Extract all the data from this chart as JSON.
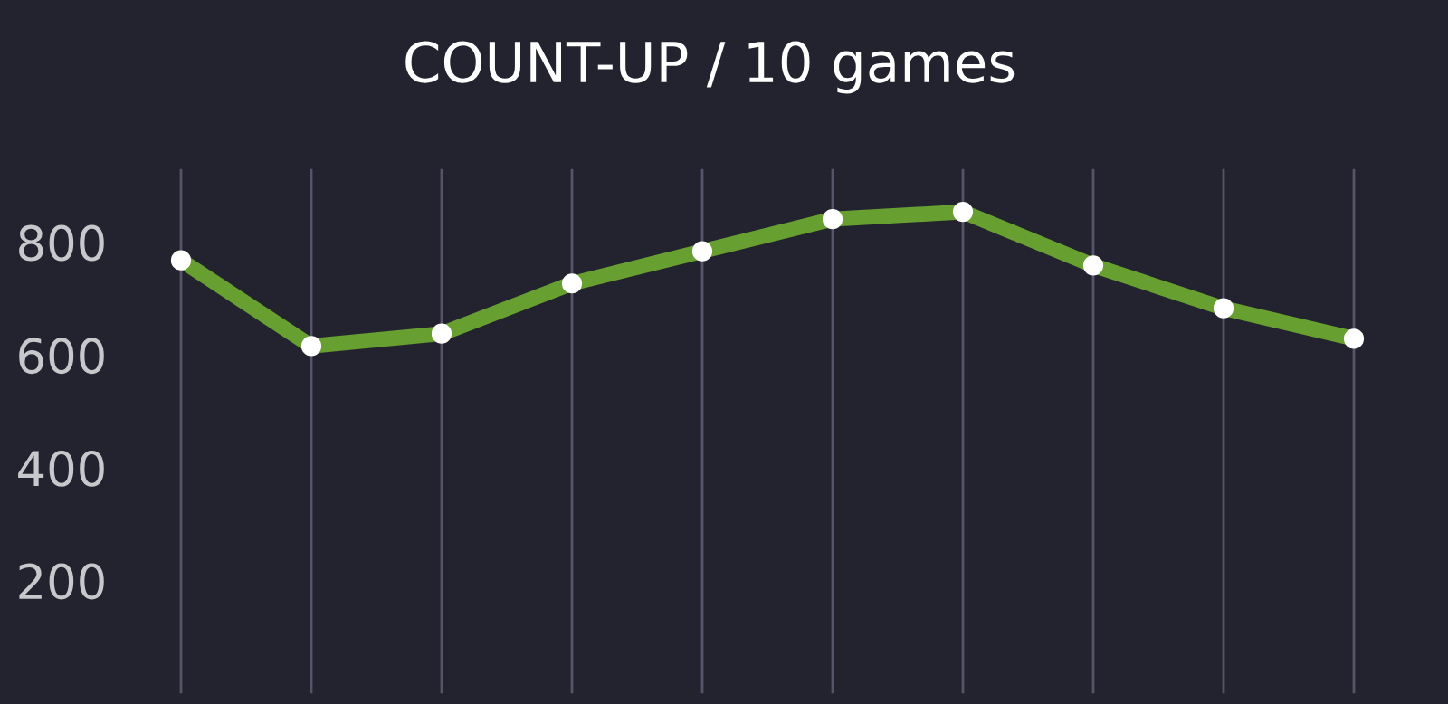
{
  "chart_data": {
    "type": "line",
    "title": "COUNT-UP / 10 games",
    "categories": [
      null,
      null,
      null,
      null,
      null,
      null,
      null,
      null,
      null,
      null
    ],
    "series": [
      {
        "color": "#67a030",
        "values": [
          768,
          616,
          638,
          727,
          784,
          841,
          854,
          759,
          683,
          629
        ]
      }
    ],
    "ylim": [
      0,
      930
    ],
    "yticks": [
      200,
      400,
      600,
      800
    ],
    "grid": "x",
    "marker": "circle",
    "line_style": "solid",
    "legend": false
  }
}
